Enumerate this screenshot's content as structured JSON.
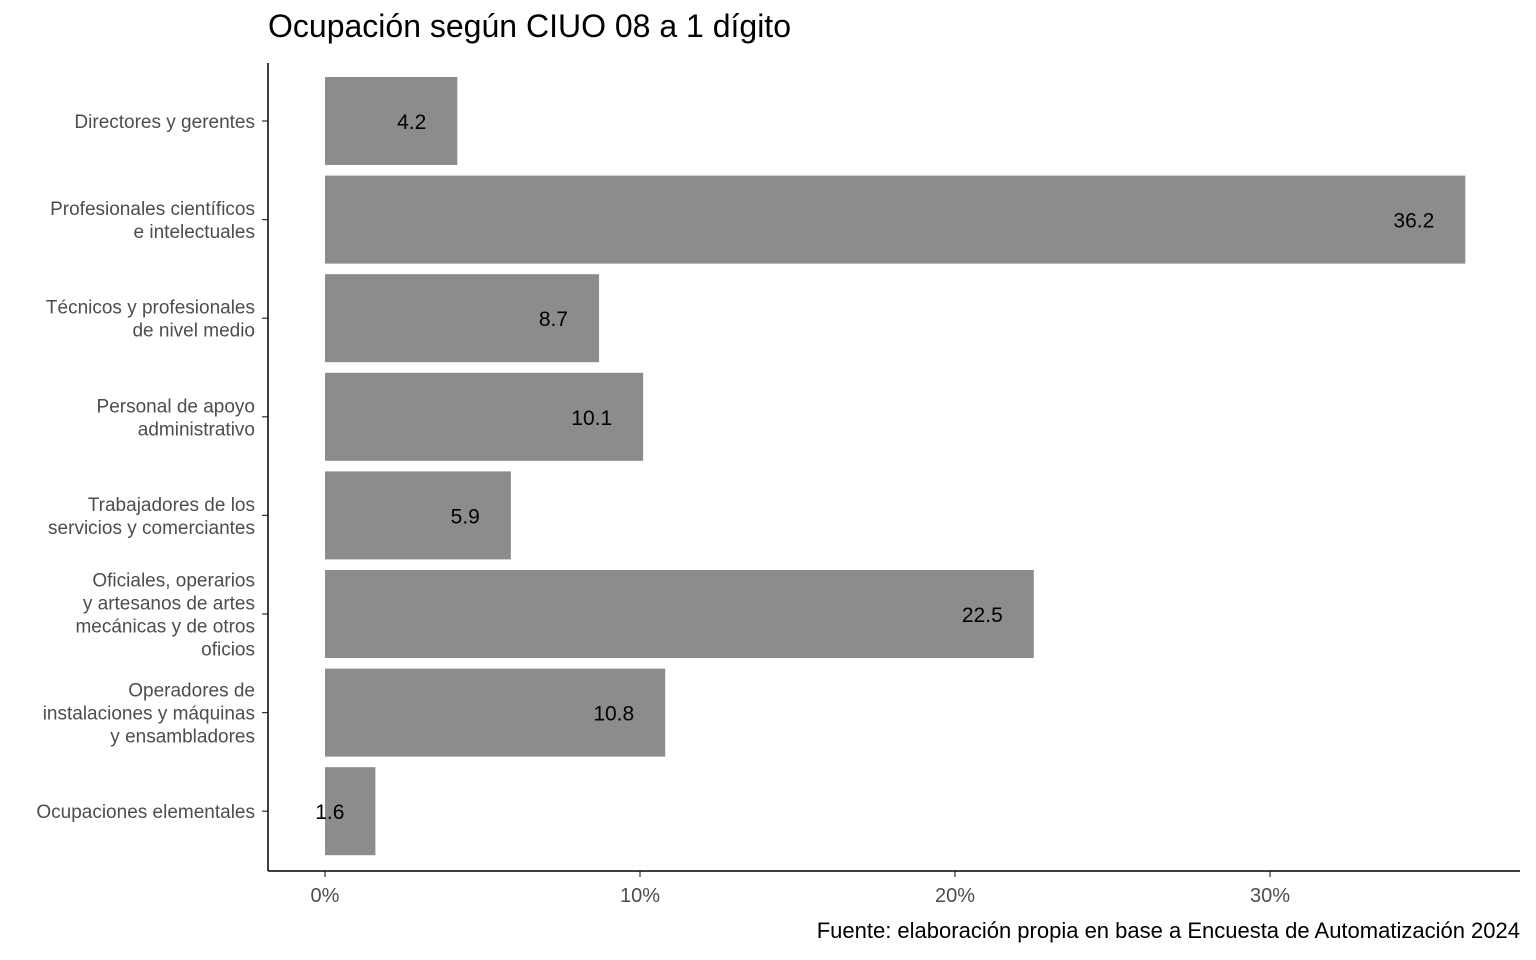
{
  "chart_data": {
    "type": "bar",
    "orientation": "horizontal",
    "title": "Ocupación según CIUO 08 a 1 dígito",
    "caption": "Fuente: elaboración propia en base a Encuesta de Automatización 2024",
    "xlabel": "",
    "ylabel": "",
    "x_ticks": [
      "0%",
      "10%",
      "20%",
      "30%"
    ],
    "x_tick_values": [
      0,
      10,
      20,
      30
    ],
    "xlim": [
      -1.8,
      38
    ],
    "bar_color": "#8c8c8c",
    "grid": false,
    "categories": [
      [
        "Directores y gerentes"
      ],
      [
        "Profesionales científicos",
        "e intelectuales"
      ],
      [
        "Técnicos y profesionales",
        "de nivel medio"
      ],
      [
        "Personal de apoyo",
        "administrativo"
      ],
      [
        "Trabajadores de los",
        "servicios y comerciantes"
      ],
      [
        "Oficiales, operarios",
        "y artesanos de artes",
        "mecánicas y de otros",
        "oficios"
      ],
      [
        "Operadores de",
        "instalaciones y máquinas",
        "y ensambladores"
      ],
      [
        "Ocupaciones elementales"
      ]
    ],
    "values": [
      4.2,
      36.2,
      8.7,
      10.1,
      5.9,
      22.5,
      10.8,
      1.6
    ],
    "data_labels": [
      "4.2",
      "36.2",
      "8.7",
      "10.1",
      "5.9",
      "22.5",
      "10.8",
      "1.6"
    ]
  }
}
